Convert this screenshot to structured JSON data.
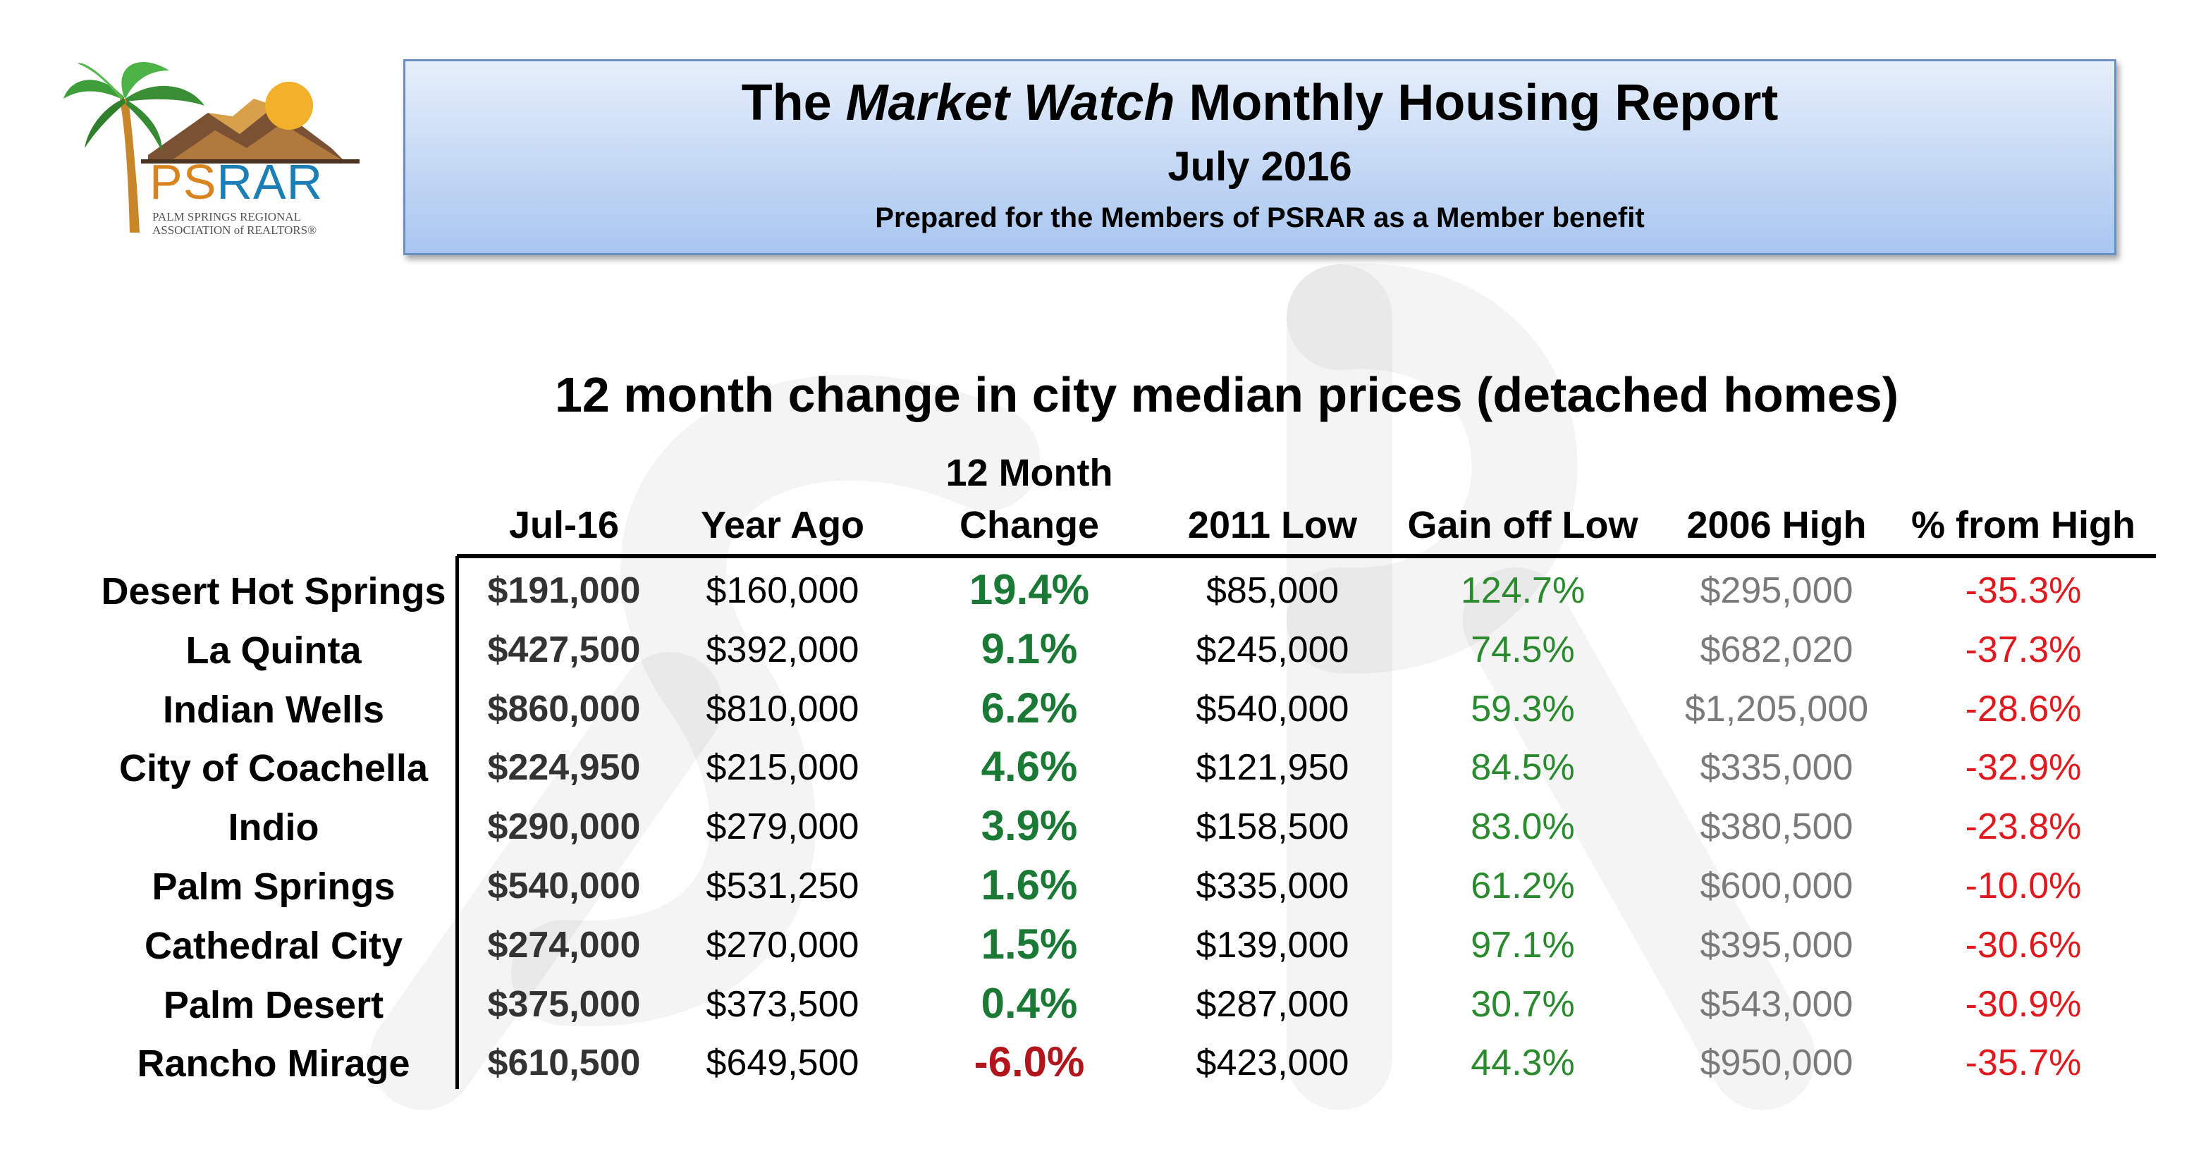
{
  "logo": {
    "brand_ps": "PS",
    "brand_rar": "RAR",
    "line1": "PALM SPRINGS REGIONAL",
    "line2": "ASSOCIATION of REALTORS®"
  },
  "header": {
    "title_pre": "The ",
    "title_italic": "Market Watch",
    "title_post": " Monthly Housing Report",
    "date": "July 2016",
    "subtitle": "Prepared for the Members of PSRAR as a Member benefit"
  },
  "section_title": "12 month change in city median prices (detached homes)",
  "table": {
    "headers": {
      "jul": "Jul-16",
      "ago": "Year Ago",
      "chg_top": "12 Month",
      "chg_bottom": "Change",
      "low": "2011 Low",
      "gain": "Gain off Low",
      "high": "2006 High",
      "pct": "% from High"
    },
    "rows": [
      {
        "city": "Desert Hot Springs",
        "jul": "$191,000",
        "ago": "$160,000",
        "chg": "19.4%",
        "low": "$85,000",
        "gain": "124.7%",
        "high": "$295,000",
        "pct": "-35.3%"
      },
      {
        "city": "La Quinta",
        "jul": "$427,500",
        "ago": "$392,000",
        "chg": "9.1%",
        "low": "$245,000",
        "gain": "74.5%",
        "high": "$682,020",
        "pct": "-37.3%"
      },
      {
        "city": "Indian Wells",
        "jul": "$860,000",
        "ago": "$810,000",
        "chg": "6.2%",
        "low": "$540,000",
        "gain": "59.3%",
        "high": "$1,205,000",
        "pct": "-28.6%"
      },
      {
        "city": "City of Coachella",
        "jul": "$224,950",
        "ago": "$215,000",
        "chg": "4.6%",
        "low": "$121,950",
        "gain": "84.5%",
        "high": "$335,000",
        "pct": "-32.9%"
      },
      {
        "city": "Indio",
        "jul": "$290,000",
        "ago": "$279,000",
        "chg": "3.9%",
        "low": "$158,500",
        "gain": "83.0%",
        "high": "$380,500",
        "pct": "-23.8%"
      },
      {
        "city": "Palm Springs",
        "jul": "$540,000",
        "ago": "$531,250",
        "chg": "1.6%",
        "low": "$335,000",
        "gain": "61.2%",
        "high": "$600,000",
        "pct": "-10.0%"
      },
      {
        "city": "Cathedral City",
        "jul": "$274,000",
        "ago": "$270,000",
        "chg": "1.5%",
        "low": "$139,000",
        "gain": "97.1%",
        "high": "$395,000",
        "pct": "-30.6%"
      },
      {
        "city": "Palm Desert",
        "jul": "$375,000",
        "ago": "$373,500",
        "chg": "0.4%",
        "low": "$287,000",
        "gain": "30.7%",
        "high": "$543,000",
        "pct": "-30.9%"
      },
      {
        "city": "Rancho Mirage",
        "jul": "$610,500",
        "ago": "$649,500",
        "chg": "-6.0%",
        "low": "$423,000",
        "gain": "44.3%",
        "high": "$950,000",
        "pct": "-35.7%"
      }
    ]
  },
  "colors": {
    "positive_change": "#1a7a35",
    "negative_change": "#b0161b",
    "gain": "#2a8a2e",
    "high": "#7a7a7a",
    "pct_from_high": "#e0191e"
  }
}
